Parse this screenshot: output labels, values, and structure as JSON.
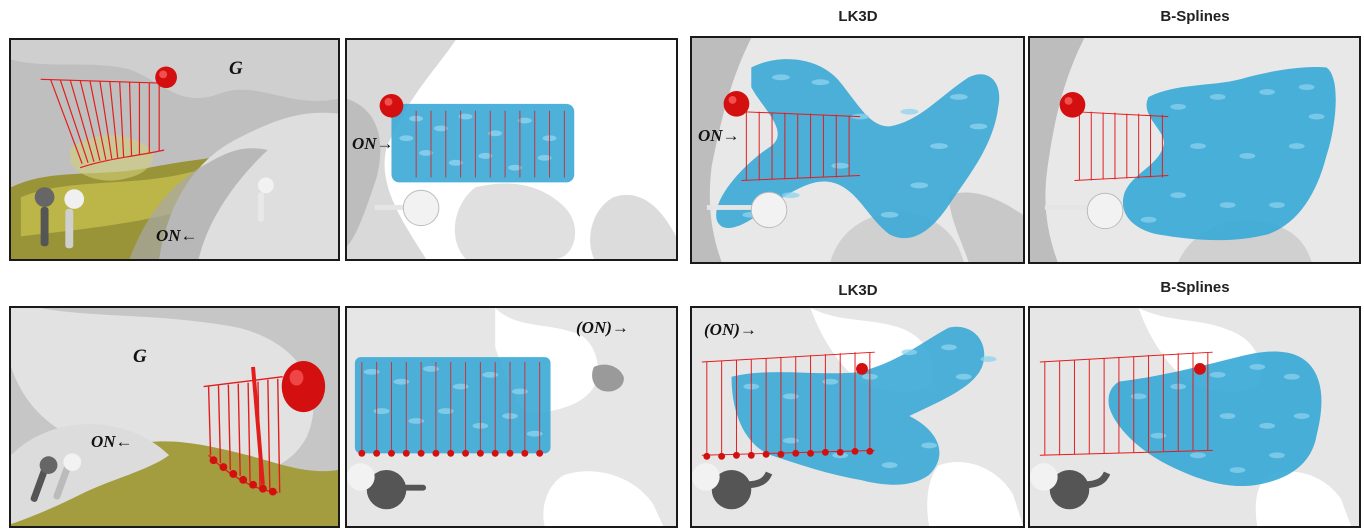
{
  "columns": {
    "lk3d_top": "LK3D",
    "bsplines_top": "B-Splines",
    "lk3d_bottom": "LK3D",
    "bsplines_bottom": "B-Splines"
  },
  "labels": {
    "top_p1_G": "G",
    "top_p1_ON": "ON←",
    "top_p2_ON": "ON→",
    "top_p3_ON": "ON→",
    "bot_p1_G": "G",
    "bot_p1_ON": "ON←",
    "bot_p2_ON": "(ON)→",
    "bot_p3_ON": "(ON)→"
  },
  "colors": {
    "frame": "#1a1a1a",
    "surface": "#dcdcdc",
    "surface_shade": "#b9b9b9",
    "tissue_olive": "#b3ad3c",
    "fibers_cyan": "#3aa9d6",
    "fibers_light": "#8fd3ef",
    "grid_red": "#e31c1c",
    "sphere_red": "#d40f0f",
    "probe_grey": "#6b6b6b"
  }
}
